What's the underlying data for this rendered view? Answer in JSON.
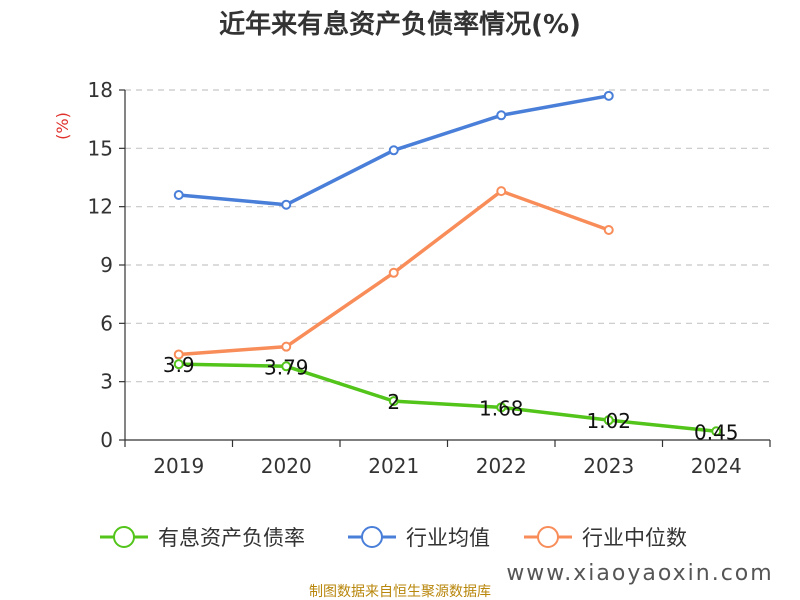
{
  "chart_data": {
    "type": "line",
    "title": "近年来有息资产负债率情况(%)",
    "ylabel": "(%)",
    "xlabel": "",
    "categories": [
      "2019",
      "2020",
      "2021",
      "2022",
      "2023",
      "2024"
    ],
    "ylim": [
      0,
      18
    ],
    "yticks": [
      0,
      3,
      6,
      9,
      12,
      15,
      18
    ],
    "grid": true,
    "legend_position": "bottom",
    "series": [
      {
        "name": "有息资产负债率",
        "color": "#52c41a",
        "values": [
          3.9,
          3.79,
          2,
          1.68,
          1.02,
          0.45
        ],
        "labels": [
          "3.9",
          "3.79",
          "2",
          "1.68",
          "1.02",
          "0.45"
        ]
      },
      {
        "name": "行业均值",
        "color": "#4a7fd9",
        "values": [
          12.6,
          12.1,
          14.9,
          16.7,
          17.7,
          null
        ]
      },
      {
        "name": "行业中位数",
        "color": "#f88d5a",
        "values": [
          4.4,
          4.8,
          8.6,
          12.8,
          10.8,
          null
        ]
      }
    ]
  },
  "source": "制图数据来自恒生聚源数据库",
  "watermark": "www.xiaoyaoxin.com"
}
